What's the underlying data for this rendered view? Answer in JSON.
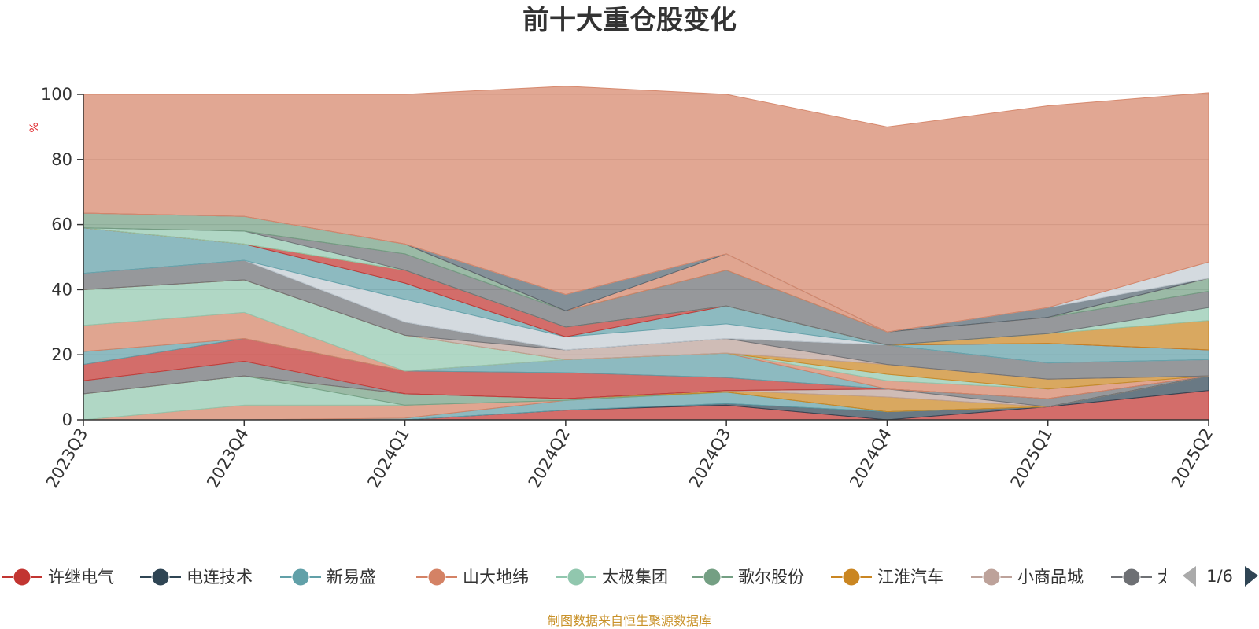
{
  "chart_data": {
    "type": "area",
    "title": "前十大重仓股变化",
    "ylabel": "%",
    "ylim": [
      0,
      100
    ],
    "yticks": [
      0,
      20,
      40,
      60,
      80,
      100
    ],
    "categories": [
      "2023Q3",
      "2023Q4",
      "2024Q1",
      "2024Q2",
      "2024Q3",
      "2024Q4",
      "2025Q1",
      "2025Q2"
    ],
    "grid": true,
    "legend_position": "bottom",
    "series": [
      {
        "name": "许继电气",
        "color": "#c23531",
        "values": [
          0,
          0,
          0,
          3,
          4.5,
          0,
          4,
          9
        ]
      },
      {
        "name": "电连技术",
        "color": "#2f4554",
        "values": [
          0,
          0,
          0,
          0,
          0.5,
          2.5,
          0,
          4.5
        ]
      },
      {
        "name": "新易盛",
        "color": "#61a0a8",
        "values": [
          0,
          0,
          0.5,
          3,
          3.5,
          0,
          0,
          0
        ]
      },
      {
        "name": "山大地纬",
        "color": "#d48265",
        "values": [
          0,
          4.5,
          4,
          0,
          0,
          0,
          0,
          0
        ]
      },
      {
        "name": "太极集团",
        "color": "#91c7ae",
        "values": [
          8,
          9,
          0,
          0,
          0,
          0,
          0,
          0
        ]
      },
      {
        "name": "歌尔股份",
        "color": "#749f83",
        "values": [
          0,
          0,
          3.5,
          0.5,
          0,
          0,
          0,
          0
        ]
      },
      {
        "name": "江淮汽车",
        "color": "#ca8622",
        "values": [
          0,
          0,
          0,
          0,
          0.5,
          4.5,
          0,
          0
        ]
      },
      {
        "name": "小商品城",
        "color": "#bda29a",
        "values": [
          0,
          0,
          0,
          0,
          0,
          2.5,
          0,
          0
        ]
      },
      {
        "name": "太极实业",
        "color": "#6e7074",
        "values": [
          4,
          4.5,
          0,
          0,
          0,
          0,
          2.5,
          0
        ]
      },
      {
        "name": "",
        "color": "#546570",
        "values": [
          0,
          0,
          0,
          0,
          0,
          0,
          0,
          0
        ]
      },
      {
        "name": "",
        "color": "#c4ccd3",
        "values": [
          0,
          0,
          0,
          0,
          0,
          0,
          0,
          0
        ]
      },
      {
        "name": "",
        "color": "#c23531",
        "values": [
          5,
          7,
          7,
          8,
          4,
          0,
          0,
          0
        ]
      },
      {
        "name": "",
        "color": "#61a0a8",
        "values": [
          4,
          0,
          0,
          4,
          7.5,
          0,
          0,
          0
        ]
      },
      {
        "name": "",
        "color": "#d48265",
        "values": [
          8,
          8,
          0,
          0,
          0,
          2.5,
          3,
          0
        ]
      },
      {
        "name": "",
        "color": "#91c7ae",
        "values": [
          11,
          10,
          11,
          0,
          0,
          2,
          0,
          0
        ]
      },
      {
        "name": "",
        "color": "#ca8622",
        "values": [
          0,
          0,
          0,
          0,
          0,
          3,
          3,
          0
        ]
      },
      {
        "name": "",
        "color": "#bda29a",
        "values": [
          0,
          0,
          0,
          3,
          4.5,
          0,
          0,
          0
        ]
      },
      {
        "name": "",
        "color": "#6e7074",
        "values": [
          5,
          6,
          4,
          0,
          0,
          6,
          5,
          5
        ]
      },
      {
        "name": "",
        "color": "#546570",
        "values": [
          0,
          0,
          0,
          0,
          0,
          0,
          0,
          0
        ]
      },
      {
        "name": "",
        "color": "#c4ccd3",
        "values": [
          0,
          0,
          7,
          4,
          4.5,
          0,
          0,
          0
        ]
      },
      {
        "name": "",
        "color": "#61a0a8",
        "values": [
          14,
          5,
          5,
          0,
          5.5,
          0,
          6,
          3
        ]
      },
      {
        "name": "",
        "color": "#c23531",
        "values": [
          0,
          0,
          4,
          3,
          0,
          0,
          0,
          0
        ]
      },
      {
        "name": "",
        "color": "#ca8622",
        "values": [
          0,
          0,
          0,
          0,
          0,
          0,
          3,
          9
        ]
      },
      {
        "name": "",
        "color": "#91c7ae",
        "values": [
          0,
          4,
          0,
          0,
          0,
          0,
          0,
          4
        ]
      },
      {
        "name": "",
        "color": "#6e7074",
        "values": [
          0,
          0,
          5,
          5,
          11,
          4,
          5,
          5
        ]
      },
      {
        "name": "",
        "color": "#749f83",
        "values": [
          4.5,
          4.5,
          3,
          0,
          0,
          0,
          0,
          4
        ]
      },
      {
        "name": "",
        "color": "#d48265",
        "values": [
          0,
          0,
          0,
          0,
          5,
          0,
          0,
          0
        ]
      },
      {
        "name": "",
        "color": "#546570",
        "values": [
          0,
          0,
          0,
          5,
          0,
          0,
          3,
          0
        ]
      },
      {
        "name": "",
        "color": "#c4ccd3",
        "values": [
          0,
          0,
          0,
          0,
          0,
          0,
          0,
          5
        ]
      },
      {
        "name": "",
        "color": "#d48265",
        "values": [
          36.5,
          37.5,
          46,
          64,
          49,
          63,
          62,
          52
        ]
      }
    ]
  },
  "legend": {
    "items": [
      {
        "label": "许继电气",
        "color": "#c23531"
      },
      {
        "label": "电连技术",
        "color": "#2f4554"
      },
      {
        "label": "新易盛",
        "color": "#61a0a8"
      },
      {
        "label": "山大地纬",
        "color": "#d48265"
      },
      {
        "label": "太极集团",
        "color": "#91c7ae"
      },
      {
        "label": "歌尔股份",
        "color": "#749f83"
      },
      {
        "label": "江淮汽车",
        "color": "#ca8622"
      },
      {
        "label": "小商品城",
        "color": "#bda29a"
      },
      {
        "label": "太极实业",
        "color": "#6e7074"
      }
    ],
    "page": "1/6"
  },
  "footer": {
    "source": "制图数据来自恒生聚源数据库"
  }
}
